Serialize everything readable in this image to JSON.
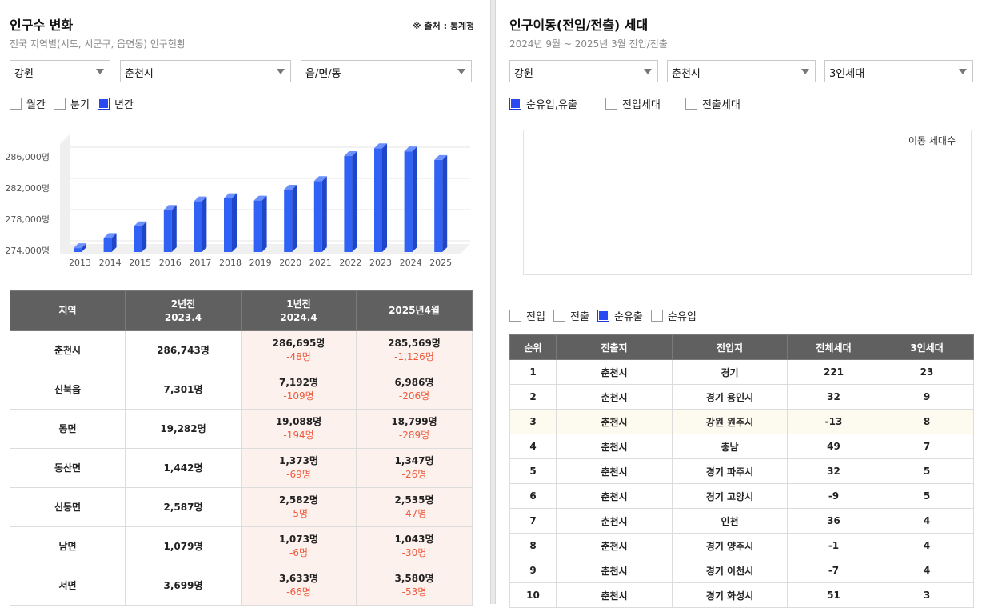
{
  "left": {
    "title": "인구수 변화",
    "subtitle": "전국 지역별(시도, 시군구, 읍면동) 인구현황",
    "source": "※ 출처 : 통계청",
    "filters": {
      "province": "강원",
      "city": "춘천시",
      "town": "읍/면/동"
    },
    "period_options": [
      {
        "label": "월간",
        "checked": false
      },
      {
        "label": "분기",
        "checked": false
      },
      {
        "label": "년간",
        "checked": true
      }
    ]
  },
  "chart_data": {
    "type": "bar",
    "categories": [
      "2013",
      "2014",
      "2015",
      "2016",
      "2017",
      "2018",
      "2019",
      "2020",
      "2021",
      "2022",
      "2023",
      "2024",
      "2025"
    ],
    "values": [
      274300,
      275600,
      277100,
      279200,
      280300,
      280700,
      280400,
      281800,
      282900,
      286100,
      287100,
      286700,
      285600
    ],
    "yticks": [
      "274,000명",
      "278,000명",
      "282,000명",
      "286,000명"
    ],
    "ytick_values": [
      274000,
      278000,
      282000,
      286000
    ],
    "ylim": [
      274000,
      288000
    ],
    "color": "#2f62f5",
    "title": "",
    "xlabel": "",
    "ylabel": ""
  },
  "pop_table": {
    "headers": [
      {
        "line1": "지역",
        "line2": ""
      },
      {
        "line1": "2년전",
        "line2": "2023.4"
      },
      {
        "line1": "1년전",
        "line2": "2024.4"
      },
      {
        "line1": "2025년4월",
        "line2": ""
      }
    ],
    "rows": [
      {
        "region": "춘천시",
        "y2": "286,743명",
        "y1": "286,695명",
        "d1": "-48명",
        "now": "285,569명",
        "d0": "-1,126명"
      },
      {
        "region": "신북읍",
        "y2": "7,301명",
        "y1": "7,192명",
        "d1": "-109명",
        "now": "6,986명",
        "d0": "-206명"
      },
      {
        "region": "동면",
        "y2": "19,282명",
        "y1": "19,088명",
        "d1": "-194명",
        "now": "18,799명",
        "d0": "-289명"
      },
      {
        "region": "동산면",
        "y2": "1,442명",
        "y1": "1,373명",
        "d1": "-69명",
        "now": "1,347명",
        "d0": "-26명"
      },
      {
        "region": "신동면",
        "y2": "2,587명",
        "y1": "2,582명",
        "d1": "-5명",
        "now": "2,535명",
        "d0": "-47명"
      },
      {
        "region": "남면",
        "y2": "1,079명",
        "y1": "1,073명",
        "d1": "-6명",
        "now": "1,043명",
        "d0": "-30명"
      },
      {
        "region": "서면",
        "y2": "3,699명",
        "y1": "3,633명",
        "d1": "-66명",
        "now": "3,580명",
        "d0": "-53명"
      }
    ]
  },
  "right": {
    "title": "인구이동(전입/전출) 세대",
    "subtitle": "2024년 9월 ~ 2025년 3월 전입/전출",
    "filters": {
      "province": "강원",
      "city": "춘천시",
      "household": "3인세대"
    },
    "type_options": [
      {
        "label": "순유입,유출",
        "checked": true
      },
      {
        "label": "전입세대",
        "checked": false
      },
      {
        "label": "전출세대",
        "checked": false
      }
    ],
    "chart_label": "이동 세대수",
    "direction_options": [
      {
        "label": "전입",
        "checked": false
      },
      {
        "label": "전출",
        "checked": false
      },
      {
        "label": "순유출",
        "checked": true
      },
      {
        "label": "순유입",
        "checked": false
      }
    ]
  },
  "move_table": {
    "headers": [
      "순위",
      "전출지",
      "전입지",
      "전체세대",
      "3인세대"
    ],
    "rows": [
      [
        "1",
        "춘천시",
        "경기",
        "221",
        "23"
      ],
      [
        "2",
        "춘천시",
        "경기 용인시",
        "32",
        "9"
      ],
      [
        "3",
        "춘천시",
        "강원 원주시",
        "-13",
        "8"
      ],
      [
        "4",
        "춘천시",
        "충남",
        "49",
        "7"
      ],
      [
        "5",
        "춘천시",
        "경기 파주시",
        "32",
        "5"
      ],
      [
        "6",
        "춘천시",
        "경기 고양시",
        "-9",
        "5"
      ],
      [
        "7",
        "춘천시",
        "인천",
        "36",
        "4"
      ],
      [
        "8",
        "춘천시",
        "경기 양주시",
        "-1",
        "4"
      ],
      [
        "9",
        "춘천시",
        "경기 이천시",
        "-7",
        "4"
      ],
      [
        "10",
        "춘천시",
        "경기 화성시",
        "51",
        "3"
      ]
    ]
  }
}
